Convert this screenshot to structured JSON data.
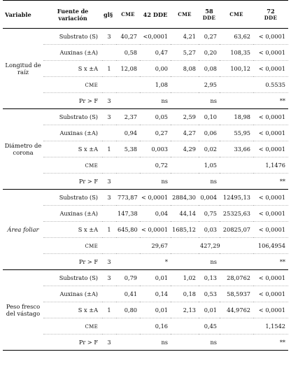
{
  "header": {
    "variable": "Variable",
    "fuente": "Fuente de variación",
    "gl": "gl§",
    "cme": "CME",
    "dde42": "42 DDE",
    "dde58_n": "58",
    "dde58_u": "DDE",
    "dde72_n": "72",
    "dde72_u": "DDE"
  },
  "groups": [
    {
      "variable": "Longitud de raíz",
      "rows": [
        {
          "src": "Substrato (S)",
          "gl": "3",
          "c1": "40,27",
          "c2": "<0,0001",
          "c3": "4,21",
          "c4": "0,27",
          "c5": "63,62",
          "c6": "< 0,0001"
        },
        {
          "src": "Auxinas (±A)",
          "gl": "",
          "c1": "0,58",
          "c2": "0,47",
          "c3": "5,27",
          "c4": "0,20",
          "c5": "108,35",
          "c6": "< 0,0001"
        },
        {
          "src": "S x ±A",
          "gl": "1",
          "c1": "12,08",
          "c2": "0,00",
          "c3": "8,08",
          "c4": "0,08",
          "c5": "100,12",
          "c6": "< 0,0001"
        },
        {
          "src": "CME",
          "gl": "",
          "c1": "",
          "c2": "1,08",
          "c3": "",
          "c4": "2,95",
          "c5": "",
          "c6": "0.5535"
        },
        {
          "src": "Pr > F",
          "gl": "3",
          "c1": "",
          "c2": "ns",
          "c3": "",
          "c4": "ns",
          "c5": "",
          "c6": "**"
        }
      ]
    },
    {
      "variable": "Diámetro de corona",
      "rows": [
        {
          "src": "Substrato (S)",
          "gl": "3",
          "c1": "2,37",
          "c2": "0,05",
          "c3": "2,59",
          "c4": "0,10",
          "c5": "18,98",
          "c6": "< 0,0001"
        },
        {
          "src": "Auxinas (±A)",
          "gl": "",
          "c1": "0,94",
          "c2": "0,27",
          "c3": "4,27",
          "c4": "0,06",
          "c5": "55,95",
          "c6": "< 0,0001"
        },
        {
          "src": "S x ±A",
          "gl": "1",
          "c1": "5,38",
          "c2": "0,003",
          "c3": "4,29",
          "c4": "0,02",
          "c5": "33,66",
          "c6": "< 0,0001"
        },
        {
          "src": "CME",
          "gl": "",
          "c1": "",
          "c2": "0,72",
          "c3": "",
          "c4": "1,05",
          "c5": "",
          "c6": "1,1476"
        },
        {
          "src": "Pr > F",
          "gl": "3",
          "c1": "",
          "c2": "ns",
          "c3": "",
          "c4": "ns",
          "c5": "",
          "c6": "**"
        }
      ]
    },
    {
      "variable": "Área foliar",
      "italic": true,
      "rows": [
        {
          "src": "Substrato (S)",
          "gl": "3",
          "c1": "773,87",
          "c2": "< 0,0001",
          "c3": "2884,30",
          "c4": "0,004",
          "c5": "12495,13",
          "c6": "< 0,0001"
        },
        {
          "src": "Auxinas (±A)",
          "gl": "",
          "c1": "147,38",
          "c2": "0,04",
          "c3": "44,14",
          "c4": "0,75",
          "c5": "25325,63",
          "c6": "< 0,0001"
        },
        {
          "src": "S x ±A",
          "gl": "1",
          "c1": "645,80",
          "c2": "< 0,0001",
          "c3": "1685,12",
          "c4": "0,03",
          "c5": "20825,07",
          "c6": "< 0,0001"
        },
        {
          "src": "CME",
          "gl": "",
          "c1": "",
          "c2": "29,67",
          "c3": "",
          "c4": "427,29",
          "c5": "",
          "c6": "106,4954"
        },
        {
          "src": "Pr > F",
          "gl": "3",
          "c1": "",
          "c2": "*",
          "c3": "",
          "c4": "ns",
          "c5": "",
          "c6": "**"
        }
      ]
    },
    {
      "variable": "Peso fresco del vástago",
      "rows": [
        {
          "src": "Substrato (S)",
          "gl": "3",
          "c1": "0,79",
          "c2": "0,01",
          "c3": "1,02",
          "c4": "0,13",
          "c5": "28,0762",
          "c6": "< 0,0001"
        },
        {
          "src": "Auxinas (±A)",
          "gl": "",
          "c1": "0,41",
          "c2": "0,14",
          "c3": "0,18",
          "c4": "0,53",
          "c5": "58,5937",
          "c6": "< 0,0001"
        },
        {
          "src": "S x ±A",
          "gl": "1",
          "c1": "0,80",
          "c2": "0,01",
          "c3": "2,13",
          "c4": "0,01",
          "c5": "44,9762",
          "c6": "< 0,0001"
        },
        {
          "src": "CME",
          "gl": "",
          "c1": "",
          "c2": "0,16",
          "c3": "",
          "c4": "0,45",
          "c5": "",
          "c6": "1,1542"
        },
        {
          "src": "Pr > F",
          "gl": "3",
          "c1": "",
          "c2": "ns",
          "c3": "",
          "c4": "ns",
          "c5": "",
          "c6": "**"
        }
      ]
    }
  ]
}
